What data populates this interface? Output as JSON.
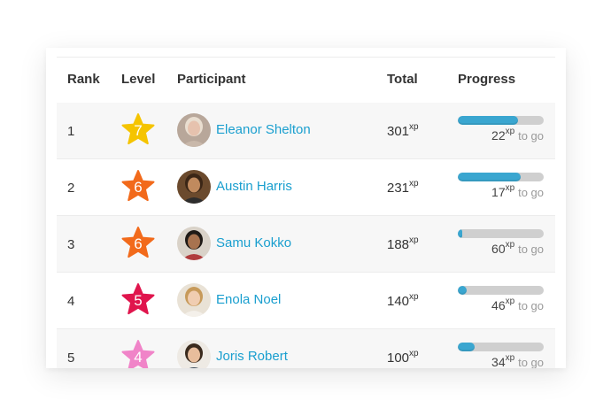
{
  "table": {
    "headers": {
      "rank": "Rank",
      "level": "Level",
      "participant": "Participant",
      "total": "Total",
      "progress": "Progress"
    },
    "xp_unit": "xp",
    "to_go_label": "to go",
    "rows": [
      {
        "rank": "1",
        "level": "7",
        "level_color": "#f5c400",
        "name": "Eleanor Shelton",
        "total": "301",
        "progress_fraction": 0.7,
        "remaining": "22"
      },
      {
        "rank": "2",
        "level": "6",
        "level_color": "#f26a1b",
        "name": "Austin Harris",
        "total": "231",
        "progress_fraction": 0.73,
        "remaining": "17"
      },
      {
        "rank": "3",
        "level": "6",
        "level_color": "#f26a1b",
        "name": "Samu Kokko",
        "total": "188",
        "progress_fraction": 0.05,
        "remaining": "60"
      },
      {
        "rank": "4",
        "level": "5",
        "level_color": "#e0154d",
        "name": "Enola Noel",
        "total": "140",
        "progress_fraction": 0.1,
        "remaining": "46"
      },
      {
        "rank": "5",
        "level": "4",
        "level_color": "#f084c8",
        "name": "Joris Robert",
        "total": "100",
        "progress_fraction": 0.2,
        "remaining": "34"
      }
    ]
  },
  "colors": {
    "link": "#1a9fcf",
    "progress_fill": "#3aa6d0",
    "progress_track": "#cfcfcf"
  }
}
